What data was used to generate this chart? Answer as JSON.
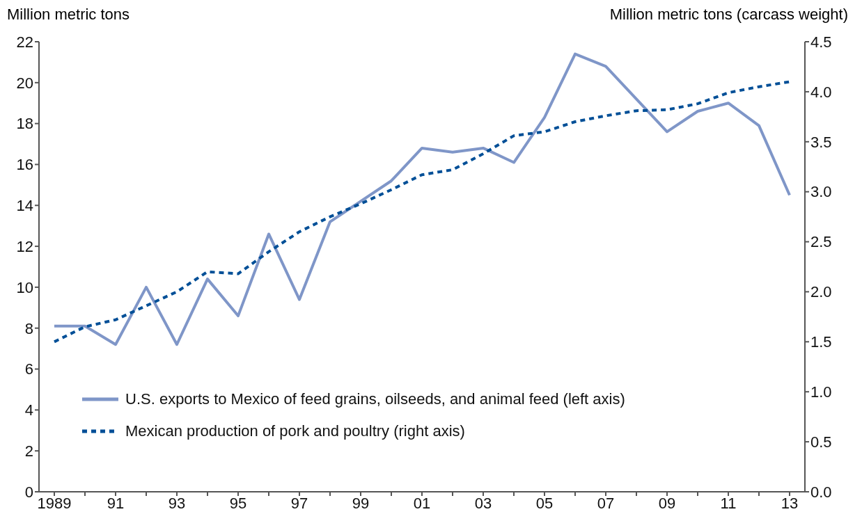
{
  "chart_data": {
    "type": "line",
    "ylabel": "Million metric tons",
    "y2label": "Million metric tons (carcass weight)",
    "categories": [
      "1989",
      null,
      "91",
      null,
      "93",
      null,
      "95",
      null,
      "97",
      null,
      "99",
      null,
      "01",
      null,
      "03",
      null,
      "05",
      null,
      "07",
      null,
      "09",
      null,
      "11",
      null,
      "13"
    ],
    "series": [
      {
        "name": "U.S. exports to Mexico of feed grains, oilseeds, and animal feed (left axis)",
        "color": "#7f96c8",
        "line_style": "solid",
        "values": [
          8.1,
          8.1,
          7.2,
          10.0,
          7.2,
          10.4,
          8.6,
          12.6,
          9.4,
          13.2,
          14.2,
          15.2,
          16.8,
          16.6,
          16.8,
          16.1,
          18.3,
          21.4,
          20.8,
          19.2,
          17.6,
          18.6,
          19.0,
          17.9,
          14.5
        ]
      },
      {
        "name": "Mexican production of pork and poultry (right axis)",
        "color": "#004f97",
        "line_style": "dashed",
        "axis": "y2",
        "values": [
          1.5,
          1.65,
          1.72,
          1.86,
          2.0,
          2.2,
          2.18,
          2.4,
          2.6,
          2.75,
          2.88,
          3.02,
          3.17,
          3.22,
          3.38,
          3.56,
          3.6,
          3.7,
          3.76,
          3.81,
          3.82,
          3.88,
          3.99,
          4.05,
          4.1
        ]
      }
    ],
    "ylim": [
      0,
      22
    ],
    "yticks": [
      0,
      2,
      4,
      6,
      8,
      10,
      12,
      14,
      16,
      18,
      20,
      22
    ],
    "y2lim": [
      0,
      4.5
    ],
    "y2ticks": [
      {
        "value": 0,
        "label": "0.0"
      },
      {
        "value": 0.5,
        "label": "0.5"
      },
      {
        "value": 1,
        "label": "1.0"
      },
      {
        "value": 1.5,
        "label": "1.5"
      },
      {
        "value": 2,
        "label": "2.0"
      },
      {
        "value": 2.5,
        "label": "2.5"
      },
      {
        "value": 3,
        "label": "3.0"
      },
      {
        "value": 3.5,
        "label": "3.5"
      },
      {
        "value": 4,
        "label": "4.0"
      },
      {
        "value": 4.5,
        "label": "4.5"
      }
    ],
    "grid": false,
    "legend": "bottom left",
    "marker": "none"
  }
}
